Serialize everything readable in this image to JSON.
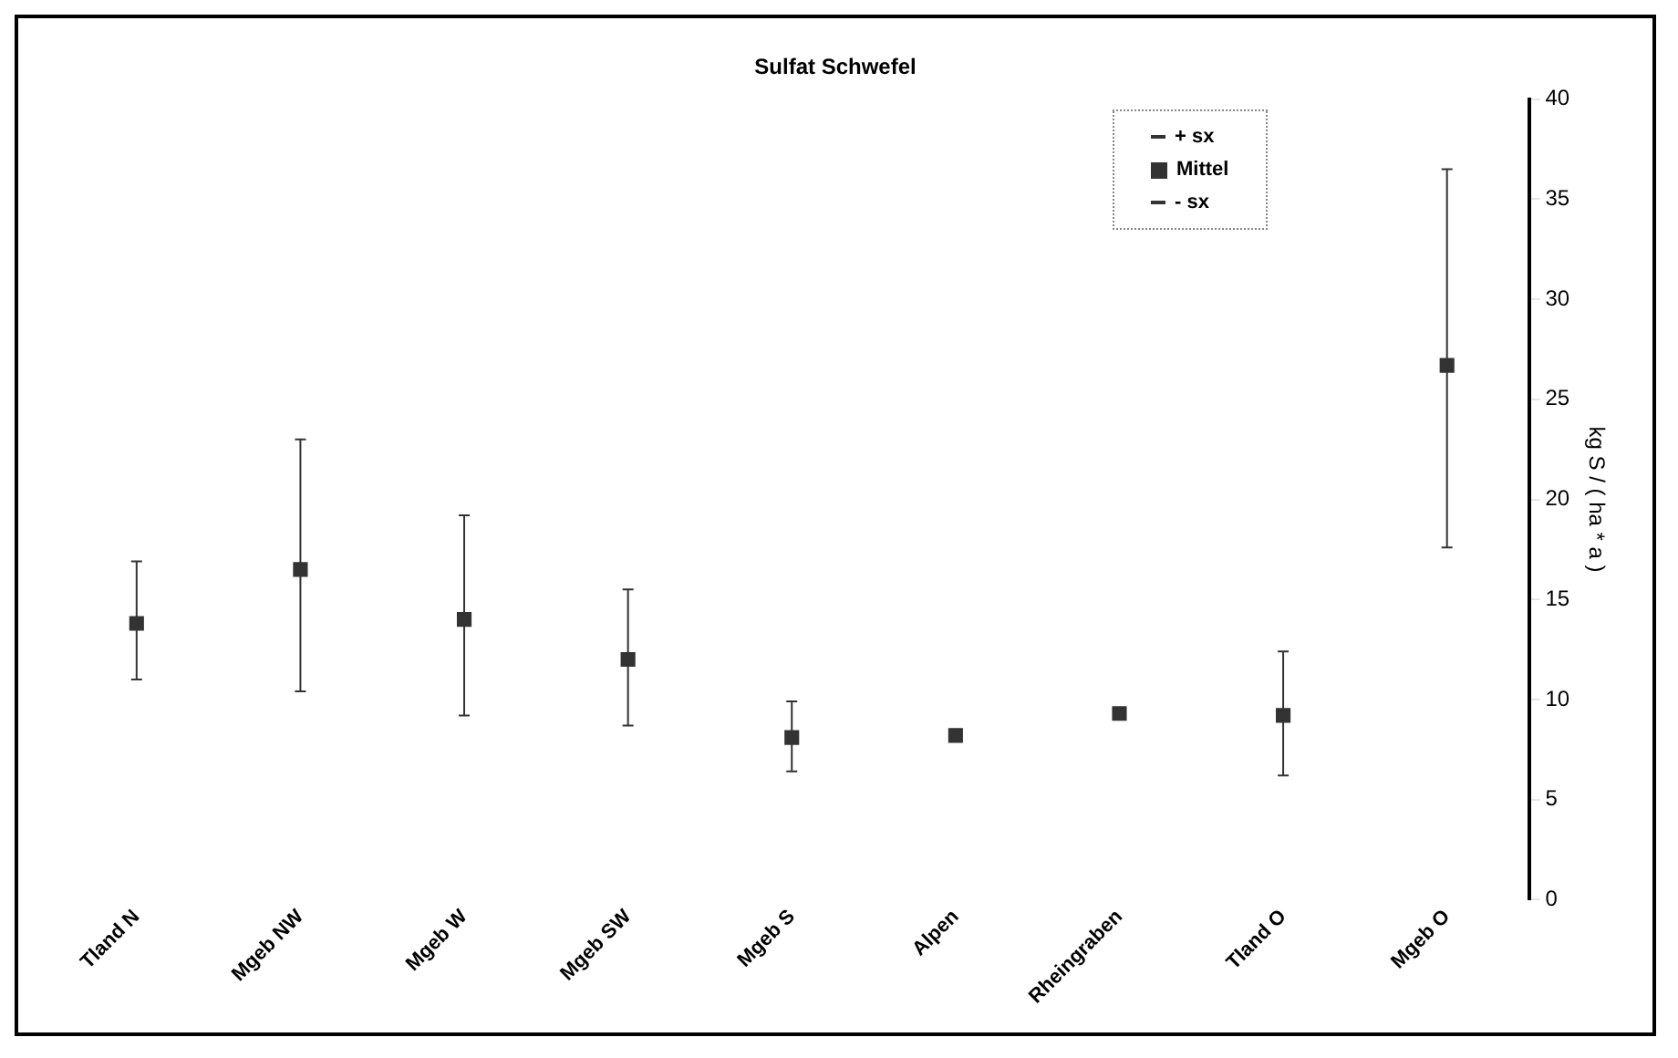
{
  "chart_data": {
    "type": "scatter",
    "title": "Sulfat Schwefel",
    "ylabel": "kg S / ( ha * a )",
    "categories": [
      "Tland N",
      "Mgeb NW",
      "Mgeb W",
      "Mgeb SW",
      "Mgeb S",
      "Alpen",
      "Rheingraben",
      "Tland O",
      "Mgeb O"
    ],
    "series": [
      {
        "name": "Mittel",
        "color": "#333333",
        "values": [
          13.8,
          16.5,
          14.0,
          12.0,
          8.1,
          8.2,
          9.3,
          9.2,
          26.7
        ],
        "errors": [
          [
            11.0,
            16.9
          ],
          [
            10.4,
            23.0
          ],
          [
            9.2,
            19.2
          ],
          [
            8.7,
            15.5
          ],
          [
            6.4,
            9.9
          ],
          null,
          null,
          [
            6.2,
            12.4
          ],
          [
            17.6,
            36.5
          ]
        ]
      }
    ],
    "annotations": [
      "+ sx",
      "- sx"
    ],
    "marker": "square",
    "ylim": [
      0,
      40
    ],
    "yticks": [
      0,
      5,
      10,
      15,
      20,
      25,
      30,
      35,
      40
    ],
    "grid": false,
    "legend": "top right"
  }
}
